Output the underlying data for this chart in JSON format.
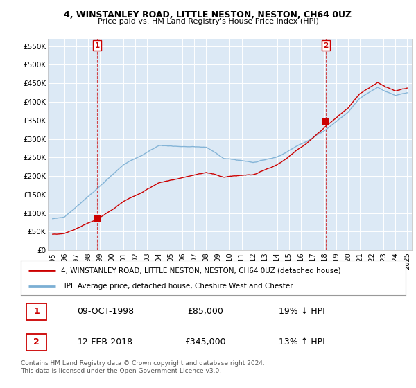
{
  "title_line1": "4, WINSTANLEY ROAD, LITTLE NESTON, NESTON, CH64 0UZ",
  "title_line2": "Price paid vs. HM Land Registry's House Price Index (HPI)",
  "ylim": [
    0,
    570000
  ],
  "yticks": [
    0,
    50000,
    100000,
    150000,
    200000,
    250000,
    300000,
    350000,
    400000,
    450000,
    500000,
    550000
  ],
  "ytick_labels": [
    "£0",
    "£50K",
    "£100K",
    "£150K",
    "£200K",
    "£250K",
    "£300K",
    "£350K",
    "£400K",
    "£450K",
    "£500K",
    "£550K"
  ],
  "hpi_color": "#7bafd4",
  "price_color": "#cc0000",
  "vline_color": "#cc0000",
  "plot_bg_color": "#dce9f5",
  "background_color": "#ffffff",
  "grid_color": "#ffffff",
  "transaction1": {
    "date_num": 1998.77,
    "price": 85000,
    "label": "1",
    "hpi_pct": "19% ↓ HPI",
    "date_str": "09-OCT-1998"
  },
  "transaction2": {
    "date_num": 2018.12,
    "price": 345000,
    "label": "2",
    "hpi_pct": "13% ↑ HPI",
    "date_str": "12-FEB-2018"
  },
  "legend_line1": "4, WINSTANLEY ROAD, LITTLE NESTON, NESTON, CH64 0UZ (detached house)",
  "legend_line2": "HPI: Average price, detached house, Cheshire West and Chester",
  "footnote": "Contains HM Land Registry data © Crown copyright and database right 2024.\nThis data is licensed under the Open Government Licence v3.0.",
  "xtick_years": [
    1995,
    1996,
    1997,
    1998,
    1999,
    2000,
    2001,
    2002,
    2003,
    2004,
    2005,
    2006,
    2007,
    2008,
    2009,
    2010,
    2011,
    2012,
    2013,
    2014,
    2015,
    2016,
    2017,
    2018,
    2019,
    2020,
    2021,
    2022,
    2023,
    2024,
    2025
  ]
}
